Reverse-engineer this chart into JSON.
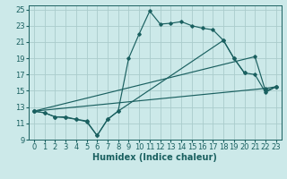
{
  "xlabel": "Humidex (Indice chaleur)",
  "xlim": [
    -0.5,
    23.5
  ],
  "ylim": [
    9,
    25.5
  ],
  "xticks": [
    0,
    1,
    2,
    3,
    4,
    5,
    6,
    7,
    8,
    9,
    10,
    11,
    12,
    13,
    14,
    15,
    16,
    17,
    18,
    19,
    20,
    21,
    22,
    23
  ],
  "yticks": [
    9,
    11,
    13,
    15,
    17,
    19,
    21,
    23,
    25
  ],
  "background_color": "#cce9e9",
  "grid_color": "#aacccc",
  "line_color": "#1a6060",
  "curve1_x": [
    0,
    1,
    2,
    3,
    4,
    5,
    6,
    7,
    8,
    9,
    10,
    11,
    12,
    13,
    14,
    15,
    16,
    17,
    18,
    19,
    20
  ],
  "curve1_y": [
    12.5,
    12.3,
    11.8,
    11.8,
    11.5,
    11.3,
    9.5,
    11.5,
    12.5,
    19.0,
    22.0,
    24.8,
    23.2,
    23.3,
    23.5,
    23.0,
    22.7,
    22.5,
    21.2,
    19.0,
    17.2
  ],
  "curve2_x": [
    0,
    1,
    2,
    3,
    4,
    5,
    6,
    7,
    8,
    18,
    19,
    20,
    21,
    22,
    23
  ],
  "curve2_y": [
    12.5,
    12.3,
    11.8,
    11.7,
    11.5,
    11.2,
    9.5,
    11.5,
    12.5,
    21.2,
    19.0,
    17.2,
    17.0,
    14.8,
    15.5
  ],
  "curve3_x": [
    0,
    21,
    22,
    23
  ],
  "curve3_y": [
    12.5,
    19.2,
    15.0,
    15.5
  ],
  "curve4_x": [
    0,
    22,
    23
  ],
  "curve4_y": [
    12.5,
    15.3,
    15.5
  ],
  "fontsize_label": 7,
  "fontsize_tick": 6
}
